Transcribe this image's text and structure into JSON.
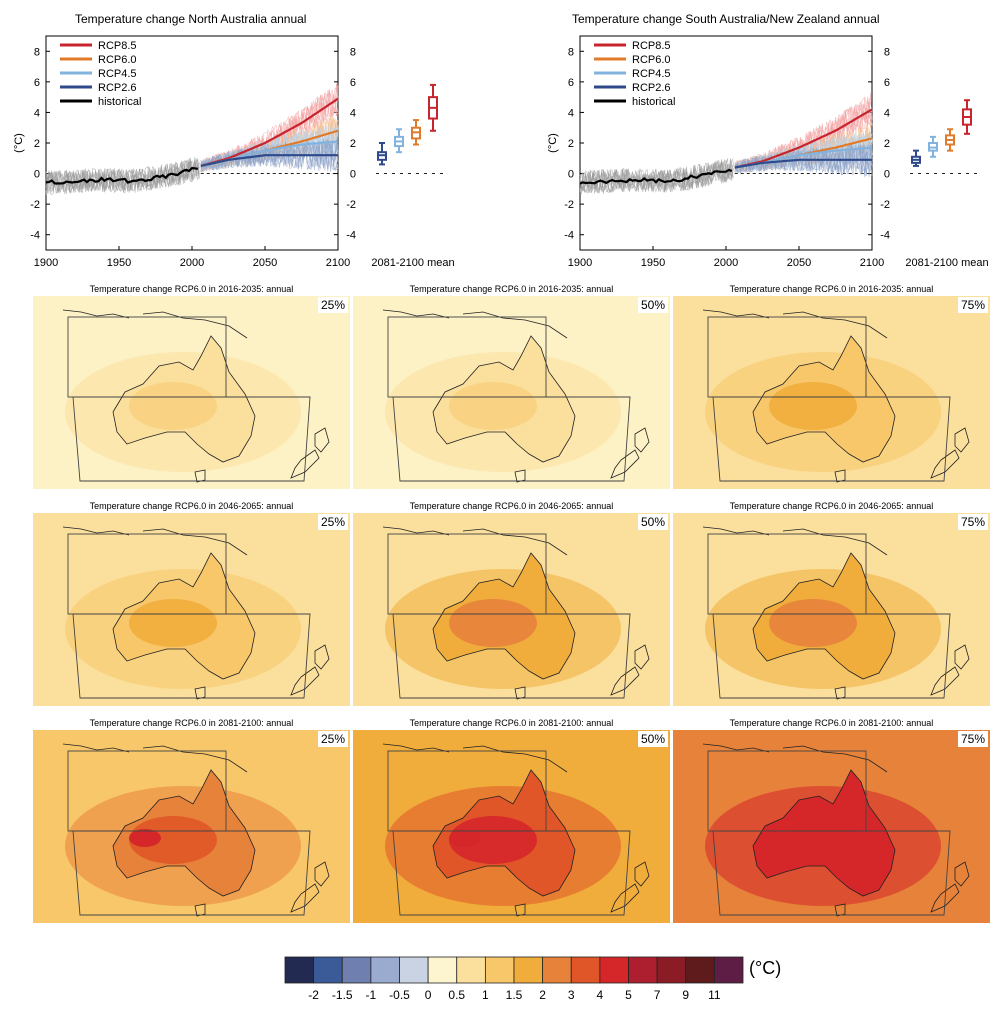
{
  "figure": {
    "colorbar": {
      "unit": "(°C)",
      "colors": [
        "#232a52",
        "#3b5a98",
        "#6e7fb0",
        "#9aabcf",
        "#c9d3e3",
        "#fdf5cf",
        "#fbdf9c",
        "#f8c76a",
        "#f0ad3c",
        "#e7823b",
        "#e05628",
        "#d5272a",
        "#ad1f2e",
        "#8b1b25",
        "#5f1a1c",
        "#5d1d45"
      ],
      "labels": [
        "-2",
        "-1.5",
        "-1",
        "-0.5",
        "0",
        "0.5",
        "1",
        "1.5",
        "2",
        "3",
        "4",
        "5",
        "7",
        "9",
        "11"
      ]
    },
    "maps": [
      {
        "title": "Temperature change RCP6.0 in 2016-2035: annual",
        "percentile": "25%",
        "tint": "#fdf1c6",
        "level": 1
      },
      {
        "title": "Temperature change RCP6.0 in 2016-2035: annual",
        "percentile": "50%",
        "tint": "#fdf1c6",
        "level": 1
      },
      {
        "title": "Temperature change RCP6.0 in 2016-2035: annual",
        "percentile": "75%",
        "tint": "#fbdf9c",
        "level": 2
      },
      {
        "title": "Temperature change RCP6.0 in 2046-2065: annual",
        "percentile": "25%",
        "tint": "#fbdf9c",
        "level": 2
      },
      {
        "title": "Temperature change RCP6.0 in 2046-2065: annual",
        "percentile": "50%",
        "tint": "#fbdf9c",
        "level": 3
      },
      {
        "title": "Temperature change RCP6.0 in 2046-2065: annual",
        "percentile": "75%",
        "tint": "#fbdf9c",
        "level": 3
      },
      {
        "title": "Temperature change RCP6.0 in 2081-2100: annual",
        "percentile": "25%",
        "tint": "#f8c76a",
        "level": 4
      },
      {
        "title": "Temperature change RCP6.0 in 2081-2100: annual",
        "percentile": "50%",
        "tint": "#f0ad3c",
        "level": 5
      },
      {
        "title": "Temperature change RCP6.0 in 2081-2100: annual",
        "percentile": "75%",
        "tint": "#e7823b",
        "level": 6
      }
    ]
  },
  "chart_data": [
    {
      "type": "line",
      "title": "Temperature change North Australia annual",
      "ylabel": "(°C)",
      "xlim": [
        1900,
        2100
      ],
      "ylim": [
        -5,
        9
      ],
      "xticks": [
        1900,
        1950,
        2000,
        2050,
        2100
      ],
      "yticks": [
        -4,
        -2,
        0,
        2,
        4,
        6,
        8
      ],
      "legend_position": "top-left",
      "box_axis_label": "2081-2100 mean",
      "series": [
        {
          "name": "RCP8.5",
          "color": "#c8242d",
          "x": [
            2006,
            2025,
            2050,
            2075,
            2100
          ],
          "values": [
            0.5,
            1.0,
            2.0,
            3.3,
            4.9
          ]
        },
        {
          "name": "RCP6.0",
          "color": "#e07b2b",
          "x": [
            2006,
            2025,
            2050,
            2075,
            2100
          ],
          "values": [
            0.5,
            0.9,
            1.5,
            2.1,
            2.8
          ]
        },
        {
          "name": "RCP4.5",
          "color": "#82b3de",
          "x": [
            2006,
            2025,
            2050,
            2075,
            2100
          ],
          "values": [
            0.5,
            0.9,
            1.5,
            1.9,
            2.1
          ]
        },
        {
          "name": "RCP2.6",
          "color": "#2f4a8a",
          "x": [
            2006,
            2025,
            2050,
            2075,
            2100
          ],
          "values": [
            0.5,
            0.9,
            1.2,
            1.2,
            1.2
          ]
        },
        {
          "name": "historical",
          "color": "#000000",
          "x": [
            1900,
            1920,
            1940,
            1960,
            1980,
            1995,
            2005
          ],
          "values": [
            -0.6,
            -0.5,
            -0.4,
            -0.5,
            -0.2,
            0.1,
            0.4
          ]
        }
      ],
      "boxes": [
        {
          "name": "RCP2.6",
          "color": "#2f4a8a",
          "min": 0.6,
          "q1": 0.9,
          "median": 1.2,
          "q3": 1.4,
          "max": 2.0
        },
        {
          "name": "RCP4.5",
          "color": "#82b3de",
          "min": 1.4,
          "q1": 1.8,
          "median": 2.1,
          "q3": 2.4,
          "max": 2.9
        },
        {
          "name": "RCP6.0",
          "color": "#e07b2b",
          "min": 1.9,
          "q1": 2.3,
          "median": 2.7,
          "q3": 3.0,
          "max": 3.5
        },
        {
          "name": "RCP8.5",
          "color": "#c8242d",
          "min": 2.8,
          "q1": 3.6,
          "median": 4.3,
          "q3": 5.0,
          "max": 5.8
        }
      ]
    },
    {
      "type": "line",
      "title": "Temperature change South Australia/New Zealand annual",
      "ylabel": "(°C)",
      "xlim": [
        1900,
        2100
      ],
      "ylim": [
        -5,
        9
      ],
      "xticks": [
        1900,
        1950,
        2000,
        2050,
        2100
      ],
      "yticks": [
        -4,
        -2,
        0,
        2,
        4,
        6,
        8
      ],
      "legend_position": "top-left",
      "box_axis_label": "2081-2100 mean",
      "series": [
        {
          "name": "RCP8.5",
          "color": "#c8242d",
          "x": [
            2006,
            2025,
            2050,
            2075,
            2100
          ],
          "values": [
            0.4,
            0.8,
            1.7,
            2.8,
            4.2
          ]
        },
        {
          "name": "RCP6.0",
          "color": "#e07b2b",
          "x": [
            2006,
            2025,
            2050,
            2075,
            2100
          ],
          "values": [
            0.4,
            0.7,
            1.2,
            1.7,
            2.3
          ]
        },
        {
          "name": "RCP4.5",
          "color": "#82b3de",
          "x": [
            2006,
            2025,
            2050,
            2075,
            2100
          ],
          "values": [
            0.4,
            0.7,
            1.2,
            1.5,
            1.7
          ]
        },
        {
          "name": "RCP2.6",
          "color": "#2f4a8a",
          "x": [
            2006,
            2025,
            2050,
            2075,
            2100
          ],
          "values": [
            0.4,
            0.7,
            0.9,
            0.9,
            0.9
          ]
        },
        {
          "name": "historical",
          "color": "#000000",
          "x": [
            1900,
            1920,
            1940,
            1960,
            1980,
            1995,
            2005
          ],
          "values": [
            -0.6,
            -0.5,
            -0.4,
            -0.5,
            -0.2,
            0.1,
            0.3
          ]
        }
      ],
      "boxes": [
        {
          "name": "RCP2.6",
          "color": "#2f4a8a",
          "min": 0.5,
          "q1": 0.7,
          "median": 0.9,
          "q3": 1.1,
          "max": 1.5
        },
        {
          "name": "RCP4.5",
          "color": "#82b3de",
          "min": 1.1,
          "q1": 1.5,
          "median": 1.7,
          "q3": 2.0,
          "max": 2.4
        },
        {
          "name": "RCP6.0",
          "color": "#e07b2b",
          "min": 1.5,
          "q1": 1.9,
          "median": 2.2,
          "q3": 2.5,
          "max": 2.9
        },
        {
          "name": "RCP8.5",
          "color": "#c8242d",
          "min": 2.6,
          "q1": 3.2,
          "median": 3.7,
          "q3": 4.2,
          "max": 4.8
        }
      ]
    }
  ]
}
